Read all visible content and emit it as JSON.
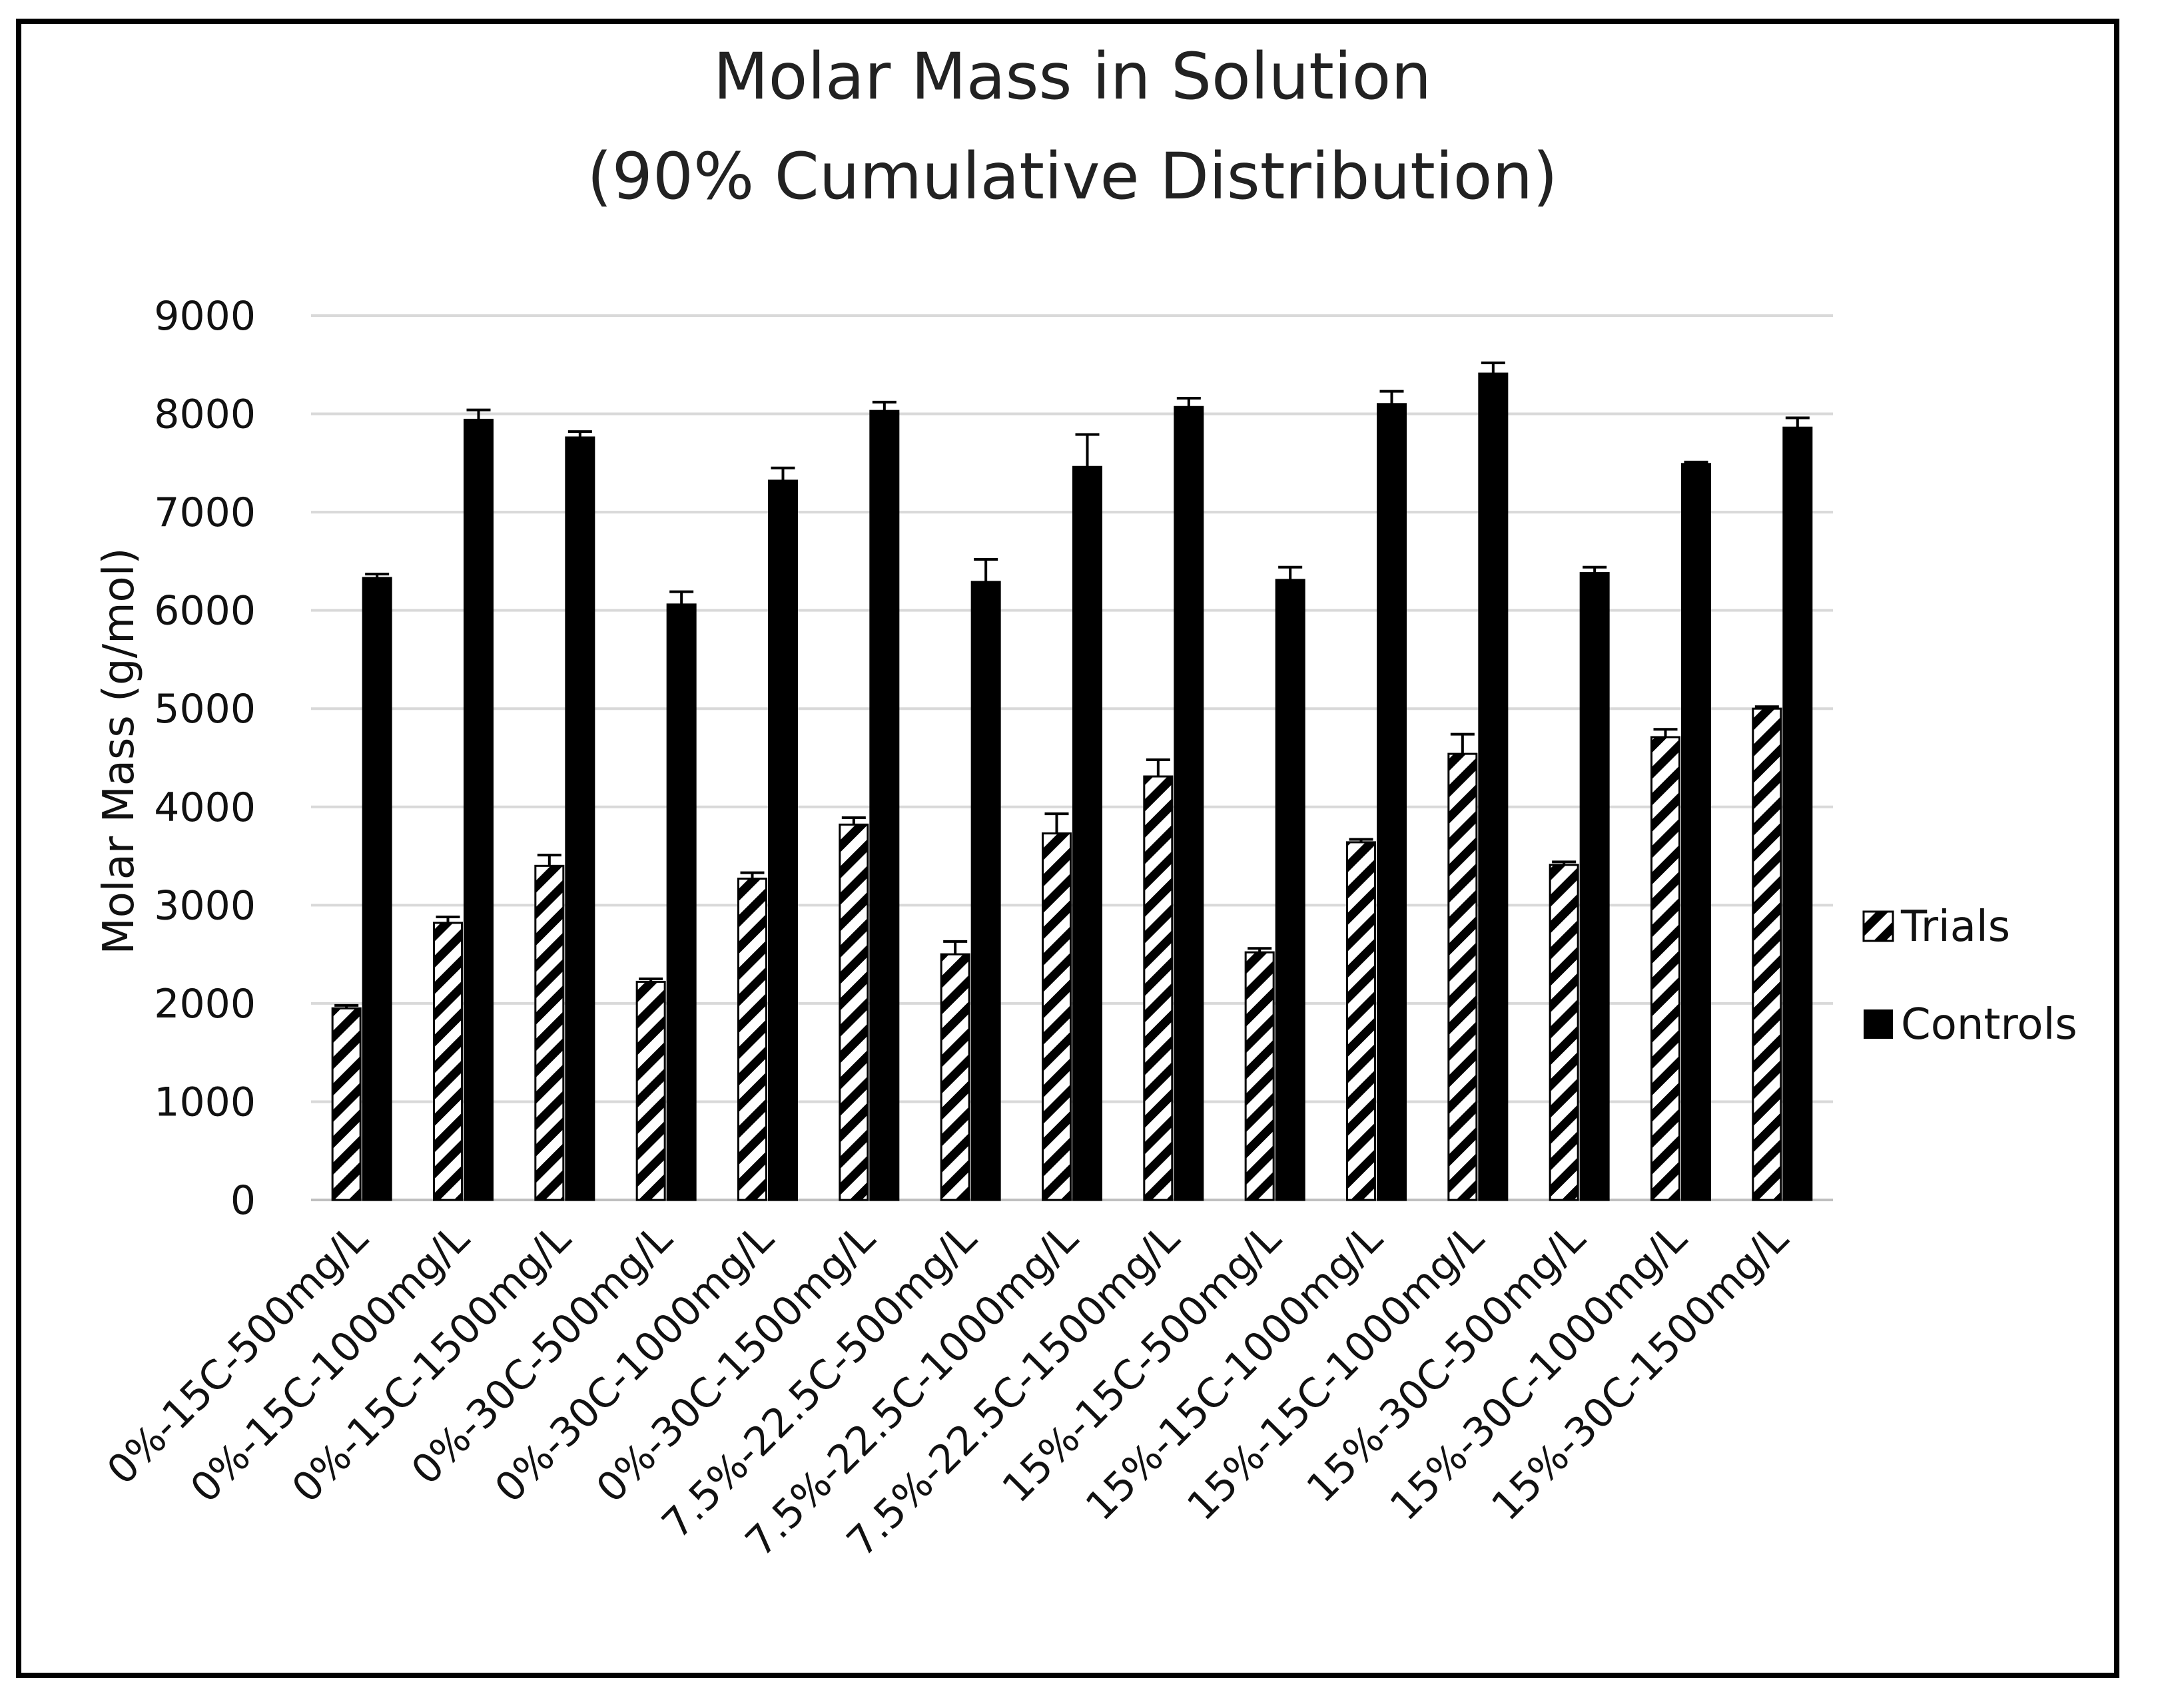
{
  "chart_data": {
    "type": "bar",
    "title": "Molar Mass in Solution",
    "subtitle": "(90% Cumulative Distribution)",
    "xlabel": "",
    "ylabel": "Molar Mass (g/mol)",
    "ylim": [
      0,
      9000
    ],
    "yticks": [
      "0",
      "1000",
      "2000",
      "3000",
      "4000",
      "5000",
      "6000",
      "7000",
      "8000",
      "9000"
    ],
    "grid": true,
    "legend_position": "right",
    "categories": [
      "0%-15C-500mg/L",
      "0%-15C-1000mg/L",
      "0%-15C-1500mg/L",
      "0%-30C-500mg/L",
      "0%-30C-1000mg/L",
      "0%-30C-1500mg/L",
      "7.5%-22.5C-500mg/L",
      "7.5%-22.5C-1000mg/L",
      "7.5%-22.5C-1500mg/L",
      "15%-15C-500mg/L",
      "15%-15C-1000mg/L",
      "15%-15C-1000mg/L",
      "15%-30C-500mg/L",
      "15%-30C-1000mg/L",
      "15%-30C-1500mg/L"
    ],
    "series": [
      {
        "name": "Trials",
        "pattern": "hatched",
        "values": [
          1950,
          2820,
          3400,
          2220,
          3270,
          3820,
          2500,
          3730,
          4310,
          2520,
          3640,
          4540,
          3410,
          4710,
          5000
        ],
        "errors": [
          30,
          60,
          110,
          30,
          60,
          70,
          130,
          200,
          170,
          40,
          30,
          200,
          30,
          80,
          20
        ]
      },
      {
        "name": "Controls",
        "pattern": "solid",
        "values": [
          6330,
          7940,
          7760,
          6060,
          7320,
          8030,
          6290,
          7460,
          8070,
          6310,
          8100,
          8410,
          6380,
          7490,
          7860
        ],
        "errors": [
          40,
          100,
          60,
          130,
          130,
          90,
          230,
          330,
          90,
          130,
          130,
          110,
          60,
          20,
          100
        ]
      }
    ],
    "colors": {
      "trials": "#000000",
      "controls": "#000000",
      "grid": "#d9d9d9"
    }
  }
}
